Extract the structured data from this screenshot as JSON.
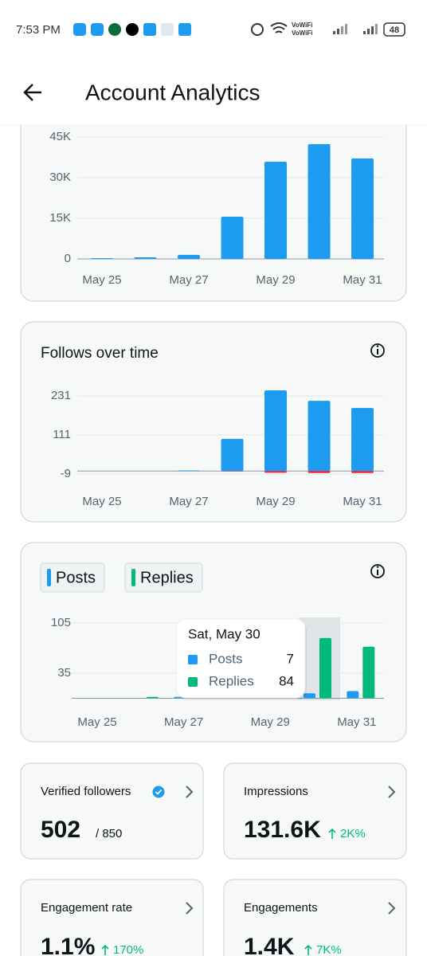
{
  "status": {
    "time": "7:53 PM",
    "wifi_labels": [
      "VoWiFi",
      "VoWiFi"
    ],
    "battery": "48"
  },
  "header": {
    "title": "Account Analytics"
  },
  "chart_data": [
    {
      "type": "bar",
      "categories": [
        "May 25",
        null,
        "May 27",
        null,
        "May 29",
        null,
        "May 31"
      ],
      "values": [
        300,
        600,
        1500,
        15600,
        35900,
        42400,
        37100
      ],
      "color": "#1d9bf0",
      "ylim": [
        0,
        45000
      ],
      "yticks": [
        0,
        {
          "value": 15000,
          "label": "15K"
        },
        {
          "value": 30000,
          "label": "30K"
        },
        {
          "value": 45000,
          "label": "45K"
        }
      ],
      "grid": true
    },
    {
      "type": "bar",
      "title": "Follows over time",
      "barmode": "overlay",
      "categories": [
        "May 25",
        null,
        "May 27",
        null,
        "May 29",
        null,
        "May 31"
      ],
      "series": [
        {
          "color": "#1d9bf0",
          "values": [
            0,
            0,
            2,
            99,
            248,
            216,
            194
          ]
        },
        {
          "color": "#f4212e",
          "values": [
            0,
            0,
            0,
            -1,
            -5,
            -6,
            -6
          ]
        }
      ],
      "ylim": [
        -12,
        250
      ],
      "yticks": [
        -9,
        111,
        231
      ],
      "grid": true
    },
    {
      "type": "bar",
      "barmode": "group",
      "categories": [
        "May 25",
        null,
        "May 27",
        null,
        "May 29",
        null,
        "May 31"
      ],
      "series": [
        {
          "name": "Posts",
          "color": "#1d9bf0",
          "values": [
            0,
            0,
            2,
            3,
            3,
            7,
            10
          ]
        },
        {
          "name": "Replies",
          "color": "#00ba7c",
          "values": [
            0,
            2,
            4,
            5,
            5,
            84,
            72
          ]
        }
      ],
      "ylim": [
        0,
        112
      ],
      "yticks": [
        35,
        105
      ],
      "grid": true,
      "tooltip": {
        "title": "Sat, May 30"
      }
    }
  ],
  "cards": [
    {
      "label": "Verified followers",
      "value": "502",
      "total": "/ 850"
    },
    {
      "label": "Impressions",
      "value": "131.6K",
      "change": "2K%"
    },
    {
      "label": "Engagement rate",
      "value": "1.1%",
      "change": "170%"
    },
    {
      "label": "Engagements",
      "value": "1.4K",
      "change": "7K%"
    }
  ]
}
